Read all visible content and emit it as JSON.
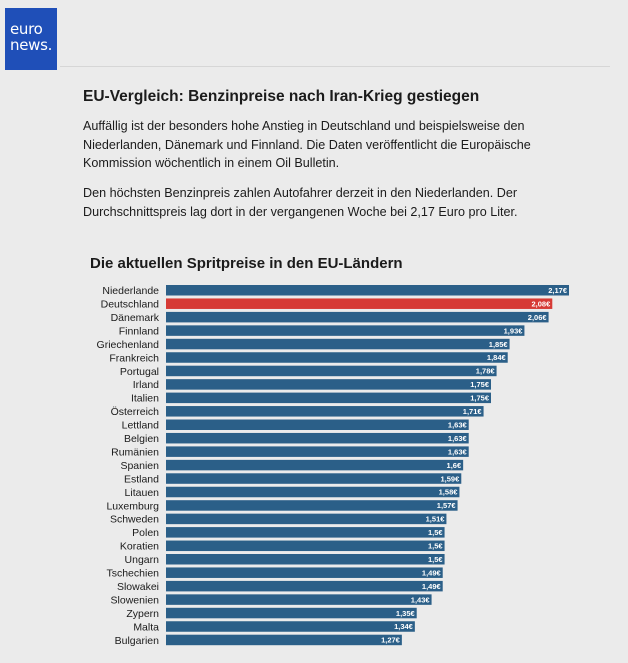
{
  "brand": {
    "line1": "euro",
    "line2": "news."
  },
  "article": {
    "headline": "EU-Vergleich: Benzinpreise nach Iran-Krieg gestiegen",
    "paragraph1": "Auffällig ist der besonders hohe Anstieg in Deutschland und beispielsweise den Niederlanden, Dänemark und Finnland. Die Daten veröffentlicht die Europäische Kommission wöchentlich in einem Oil Bulletin.",
    "paragraph2": "Den höchsten Benzinpreis zahlen Autofahrer derzeit in den Niederlanden. Der Durchschnittspreis lag dort in der vergangenen Woche bei 2,17 Euro pro Liter."
  },
  "colors": {
    "bar": "#2b5f88",
    "highlight": "#d63a35"
  },
  "chart_data": {
    "type": "bar",
    "orientation": "horizontal",
    "title": "Die aktuellen Spritpreise in den EU-Ländern",
    "xlabel": "",
    "ylabel": "",
    "xlim": [
      0,
      2.17
    ],
    "unit": "€",
    "highlight": "Deutschland",
    "categories": [
      "Niederlande",
      "Deutschland",
      "Dänemark",
      "Finnland",
      "Griechenland",
      "Frankreich",
      "Portugal",
      "Irland",
      "Italien",
      "Österreich",
      "Lettland",
      "Belgien",
      "Rumänien",
      "Spanien",
      "Estland",
      "Litauen",
      "Luxemburg",
      "Schweden",
      "Polen",
      "Koratien",
      "Ungarn",
      "Tschechien",
      "Slowakei",
      "Slowenien",
      "Zypern",
      "Malta",
      "Bulgarien"
    ],
    "values": [
      2.17,
      2.08,
      2.06,
      1.93,
      1.85,
      1.84,
      1.78,
      1.75,
      1.75,
      1.71,
      1.63,
      1.63,
      1.63,
      1.6,
      1.59,
      1.58,
      1.57,
      1.51,
      1.5,
      1.5,
      1.5,
      1.49,
      1.49,
      1.43,
      1.35,
      1.34,
      1.27
    ],
    "labels": [
      "2,17€",
      "2,08€",
      "2,06€",
      "1,93€",
      "1,85€",
      "1,84€",
      "1,78€",
      "1,75€",
      "1,75€",
      "1,71€",
      "1,63€",
      "1,63€",
      "1,63€",
      "1,6€",
      "1,59€",
      "1,58€",
      "1,57€",
      "1,51€",
      "1,5€",
      "1,5€",
      "1,5€",
      "1,49€",
      "1,49€",
      "1,43€",
      "1,35€",
      "1,34€",
      "1,27€"
    ]
  }
}
